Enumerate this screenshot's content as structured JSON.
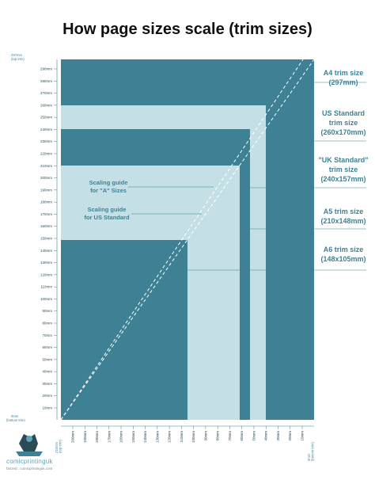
{
  "title": "How page sizes scale (trim sizes)",
  "edge_labels": {
    "top_left": [
      "297mm",
      "(top trim)"
    ],
    "bottom_left": [
      "0mm",
      "(bottom trim)"
    ],
    "bottom_x_left": [
      "210mm",
      "(top trim)"
    ],
    "bottom_x_right": [
      "0mm",
      "(bottom trim)"
    ]
  },
  "y_ticks": [
    "290mm",
    "280mm",
    "270mm",
    "260mm",
    "250mm",
    "240mm",
    "230mm",
    "220mm",
    "210mm",
    "200mm",
    "190mm",
    "180mm",
    "170mm",
    "160mm",
    "150mm",
    "140mm",
    "130mm",
    "120mm",
    "110mm",
    "100mm",
    "90mm",
    "80mm",
    "70mm",
    "60mm",
    "50mm",
    "40mm",
    "30mm",
    "20mm",
    "10mm"
  ],
  "x_ticks": [
    "200mm",
    "190mm",
    "180mm",
    "170mm",
    "160mm",
    "150mm",
    "140mm",
    "130mm",
    "120mm",
    "110mm",
    "100mm",
    "90mm",
    "80mm",
    "70mm",
    "60mm",
    "50mm",
    "40mm",
    "30mm",
    "20mm",
    "10mm"
  ],
  "right_labels": [
    {
      "lines": [
        "A4 trim size",
        "(297mm)"
      ]
    },
    {
      "lines": [
        "US Standard",
        "trim size",
        "(260x170mm)"
      ]
    },
    {
      "lines": [
        "\"UK Standard\"",
        "trim size",
        "(240x157mm)"
      ]
    },
    {
      "lines": [
        "A5 trim size",
        "(210x148mm)"
      ]
    },
    {
      "lines": [
        "A6 trim size",
        "(148x105mm)"
      ]
    }
  ],
  "guide_labels": [
    {
      "lines": [
        "Scaling guide",
        "for \"A\" Sizes"
      ]
    },
    {
      "lines": [
        "Scaling guide",
        "for US Standard"
      ]
    }
  ],
  "logo": {
    "name": "comicprintinguk",
    "sub": "fanzed : comicprintinguk.com"
  },
  "colors": {
    "dark": "#3e8195",
    "light": "#c4e0e6"
  }
}
